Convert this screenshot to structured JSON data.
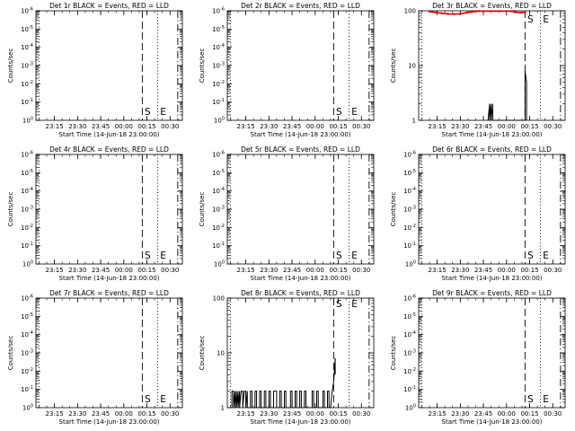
{
  "chart_data": [
    {
      "type": "line",
      "title": "Det 1r BLACK = Events, RED = LLD",
      "xlabel": "Start Time (14-Jun-18 23:00:00)",
      "ylabel": "Counts/sec",
      "yscale": "log",
      "ytick_labels": [
        "10^0",
        "10^-1",
        "10^-2",
        "10^-3",
        "10^-4",
        "10^-5",
        "10^-6"
      ],
      "xtick_labels": [
        "23:15",
        "23:30",
        "23:45",
        "00:00",
        "00:15",
        "00:30"
      ],
      "markers": [
        {
          "label": "S",
          "x": "00:12"
        },
        {
          "label": "E",
          "x": "00:22"
        },
        {
          "label": "",
          "x": "23:05"
        },
        {
          "label": "",
          "x": "00:35"
        }
      ],
      "series": []
    },
    {
      "type": "line",
      "title": "Det 2r BLACK = Events, RED = LLD",
      "xlabel": "Start Time (14-Jun-18 23:00:00)",
      "ylabel": "Counts/sec",
      "yscale": "log",
      "ytick_labels": [
        "10^0",
        "10^-1",
        "10^-2",
        "10^-3",
        "10^-4",
        "10^-5",
        "10^-6"
      ],
      "xtick_labels": [
        "23:15",
        "23:30",
        "23:45",
        "00:00",
        "00:15",
        "00:30"
      ],
      "markers": [
        {
          "label": "S",
          "x": "00:12"
        },
        {
          "label": "E",
          "x": "00:22"
        },
        {
          "label": "",
          "x": "23:05"
        },
        {
          "label": "",
          "x": "00:35"
        }
      ],
      "series": []
    },
    {
      "type": "line",
      "title": "Det 3r BLACK = Events, RED = LLD",
      "xlabel": "Start Time (14-Jun-18 23:00:00)",
      "ylabel": "Counts/sec",
      "yscale": "log",
      "ytick_labels": [
        "1",
        "10",
        "100"
      ],
      "xtick_labels": [
        "23:15",
        "23:30",
        "23:45",
        "00:00",
        "00:15",
        "00:30"
      ],
      "markers": [
        {
          "label": "S",
          "x": "00:12"
        },
        {
          "label": "E",
          "x": "00:22"
        },
        {
          "label": "",
          "x": "23:05"
        },
        {
          "label": "",
          "x": "00:35"
        }
      ],
      "series": [
        {
          "color": "#000000",
          "kind": "events",
          "points": [
            [
              "23:48",
              1
            ],
            [
              "23:49",
              2
            ],
            [
              "23:49",
              1
            ],
            [
              "23:50",
              2
            ],
            [
              "23:50",
              1
            ],
            [
              "23:51",
              2
            ],
            [
              "23:51",
              1
            ],
            [
              "00:12",
              1
            ],
            [
              "00:12",
              8
            ],
            [
              "00:13",
              5
            ],
            [
              "00:13",
              1
            ]
          ]
        },
        {
          "color": "#dd0000",
          "kind": "lld",
          "points": [
            [
              "23:10",
              97
            ],
            [
              "23:14",
              93
            ],
            [
              "23:18",
              90
            ],
            [
              "23:22",
              88
            ],
            [
              "23:26",
              87
            ],
            [
              "23:30",
              88
            ],
            [
              "23:34",
              92
            ],
            [
              "23:38",
              96
            ],
            [
              "23:42",
              99
            ],
            [
              "00:03",
              98
            ],
            [
              "00:06",
              94
            ],
            [
              "00:09",
              92
            ],
            [
              "00:12",
              93
            ]
          ]
        }
      ]
    },
    {
      "type": "line",
      "title": "Det 4r BLACK = Events, RED = LLD",
      "xlabel": "Start Time (14-Jun-18 23:00:00)",
      "ylabel": "Counts/sec",
      "yscale": "log",
      "ytick_labels": [
        "10^0",
        "10^-1",
        "10^-2",
        "10^-3",
        "10^-4",
        "10^-5",
        "10^-6"
      ],
      "xtick_labels": [
        "23:15",
        "23:30",
        "23:45",
        "00:00",
        "00:15",
        "00:30"
      ],
      "markers": [
        {
          "label": "S",
          "x": "00:12"
        },
        {
          "label": "E",
          "x": "00:22"
        },
        {
          "label": "",
          "x": "23:05"
        },
        {
          "label": "",
          "x": "00:35"
        }
      ],
      "series": []
    },
    {
      "type": "line",
      "title": "Det 5r BLACK = Events, RED = LLD",
      "xlabel": "Start Time (14-Jun-18 23:00:00)",
      "ylabel": "Counts/sec",
      "yscale": "log",
      "ytick_labels": [
        "10^0",
        "10^-1",
        "10^-2",
        "10^-3",
        "10^-4",
        "10^-5",
        "10^-6"
      ],
      "xtick_labels": [
        "23:15",
        "23:30",
        "23:45",
        "00:00",
        "00:15",
        "00:30"
      ],
      "markers": [
        {
          "label": "S",
          "x": "00:12"
        },
        {
          "label": "E",
          "x": "00:22"
        },
        {
          "label": "",
          "x": "23:05"
        },
        {
          "label": "",
          "x": "00:35"
        }
      ],
      "series": []
    },
    {
      "type": "line",
      "title": "Det 6r BLACK = Events, RED = LLD",
      "xlabel": "Start Time (14-Jun-18 23:00:00)",
      "ylabel": "Counts/sec",
      "yscale": "log",
      "ytick_labels": [
        "10^0",
        "10^-1",
        "10^-2",
        "10^-3",
        "10^-4",
        "10^-5",
        "10^-6"
      ],
      "xtick_labels": [
        "23:15",
        "23:30",
        "23:45",
        "00:00",
        "00:15",
        "00:30"
      ],
      "markers": [
        {
          "label": "S",
          "x": "00:12"
        },
        {
          "label": "E",
          "x": "00:22"
        },
        {
          "label": "",
          "x": "23:05"
        },
        {
          "label": "",
          "x": "00:35"
        }
      ],
      "series": []
    },
    {
      "type": "line",
      "title": "Det 7r BLACK = Events, RED = LLD",
      "xlabel": "Start Time (14-Jun-18 23:00:00)",
      "ylabel": "Counts/sec",
      "yscale": "log",
      "ytick_labels": [
        "10^0",
        "10^-1",
        "10^-2",
        "10^-3",
        "10^-4",
        "10^-5",
        "10^-6"
      ],
      "xtick_labels": [
        "23:15",
        "23:30",
        "23:45",
        "00:00",
        "00:15",
        "00:30"
      ],
      "markers": [
        {
          "label": "S",
          "x": "00:12"
        },
        {
          "label": "E",
          "x": "00:22"
        },
        {
          "label": "",
          "x": "23:05"
        },
        {
          "label": "",
          "x": "00:35"
        }
      ],
      "series": []
    },
    {
      "type": "line",
      "title": "Det 8r BLACK = Events, RED = LLD",
      "xlabel": "Start Time (14-Jun-18 23:00:00)",
      "ylabel": "Counts/sec",
      "yscale": "log",
      "ytick_labels": [
        "1",
        "10",
        "100"
      ],
      "xtick_labels": [
        "23:15",
        "23:30",
        "23:45",
        "00:00",
        "00:15",
        "00:30"
      ],
      "markers": [
        {
          "label": "S",
          "x": "00:12"
        },
        {
          "label": "E",
          "x": "00:22"
        },
        {
          "label": "",
          "x": "23:05"
        },
        {
          "label": "",
          "x": "00:35"
        }
      ],
      "series": [
        {
          "color": "#000000",
          "kind": "events",
          "points": [
            [
              "23:06",
              1
            ],
            [
              "23:06",
              2
            ],
            [
              "23:07",
              2
            ],
            [
              "23:07",
              1
            ],
            [
              "23:08",
              2
            ],
            [
              "23:08",
              1
            ],
            [
              "23:09",
              2
            ],
            [
              "23:09",
              1
            ],
            [
              "23:10",
              2
            ],
            [
              "23:10",
              1
            ],
            [
              "23:11",
              2
            ],
            [
              "23:11",
              1
            ],
            [
              "23:12",
              2
            ],
            [
              "23:13",
              2
            ],
            [
              "23:13",
              1
            ],
            [
              "23:14",
              2
            ],
            [
              "23:15",
              2
            ],
            [
              "23:15",
              1
            ],
            [
              "23:16",
              2
            ],
            [
              "23:16",
              1
            ],
            [
              "23:18",
              1
            ],
            [
              "23:18",
              2
            ],
            [
              "23:19",
              2
            ],
            [
              "23:19",
              1
            ],
            [
              "23:21",
              1
            ],
            [
              "23:21",
              2
            ],
            [
              "23:22",
              2
            ],
            [
              "23:22",
              1
            ],
            [
              "23:24",
              1
            ],
            [
              "23:24",
              2
            ],
            [
              "23:25",
              2
            ],
            [
              "23:25",
              1
            ],
            [
              "23:27",
              1
            ],
            [
              "23:27",
              2
            ],
            [
              "23:28",
              2
            ],
            [
              "23:28",
              1
            ],
            [
              "23:30",
              1
            ],
            [
              "23:30",
              2
            ],
            [
              "23:31",
              2
            ],
            [
              "23:31",
              1
            ],
            [
              "23:33",
              1
            ],
            [
              "23:33",
              2
            ],
            [
              "23:34",
              2
            ],
            [
              "23:35",
              2
            ],
            [
              "23:35",
              1
            ],
            [
              "23:37",
              1
            ],
            [
              "23:37",
              2
            ],
            [
              "23:38",
              2
            ],
            [
              "23:38",
              1
            ],
            [
              "23:40",
              1
            ],
            [
              "23:40",
              2
            ],
            [
              "23:41",
              2
            ],
            [
              "23:41",
              1
            ],
            [
              "23:44",
              1
            ],
            [
              "23:44",
              2
            ],
            [
              "23:45",
              2
            ],
            [
              "23:45",
              1
            ],
            [
              "23:47",
              1
            ],
            [
              "23:47",
              2
            ],
            [
              "23:48",
              2
            ],
            [
              "23:48",
              1
            ],
            [
              "23:50",
              1
            ],
            [
              "23:50",
              2
            ],
            [
              "23:51",
              2
            ],
            [
              "23:51",
              1
            ],
            [
              "23:53",
              1
            ],
            [
              "23:53",
              2
            ],
            [
              "23:54",
              2
            ],
            [
              "23:54",
              1
            ],
            [
              "23:58",
              1
            ],
            [
              "23:58",
              2
            ],
            [
              "23:59",
              2
            ],
            [
              "23:59",
              1
            ],
            [
              "00:01",
              1
            ],
            [
              "00:01",
              2
            ],
            [
              "00:02",
              2
            ],
            [
              "00:02",
              1
            ],
            [
              "00:05",
              1
            ],
            [
              "00:05",
              2
            ],
            [
              "00:06",
              2
            ],
            [
              "00:06",
              1
            ],
            [
              "00:08",
              1
            ],
            [
              "00:08",
              2
            ],
            [
              "00:09",
              2
            ],
            [
              "00:09",
              1
            ],
            [
              "00:10",
              1
            ],
            [
              "00:11",
              2
            ],
            [
              "00:12",
              3
            ],
            [
              "00:13",
              8
            ],
            [
              "00:13",
              4
            ]
          ]
        }
      ]
    },
    {
      "type": "line",
      "title": "Det 9r BLACK = Events, RED = LLD",
      "xlabel": "Start Time (14-Jun-18 23:00:00)",
      "ylabel": "Counts/sec",
      "yscale": "log",
      "ytick_labels": [
        "10^0",
        "10^-1",
        "10^-2",
        "10^-3",
        "10^-4",
        "10^-5",
        "10^-6"
      ],
      "xtick_labels": [
        "23:15",
        "23:30",
        "23:45",
        "00:00",
        "00:15",
        "00:30"
      ],
      "markers": [
        {
          "label": "S",
          "x": "00:12"
        },
        {
          "label": "E",
          "x": "00:22"
        },
        {
          "label": "",
          "x": "23:05"
        },
        {
          "label": "",
          "x": "00:35"
        }
      ],
      "series": []
    }
  ]
}
